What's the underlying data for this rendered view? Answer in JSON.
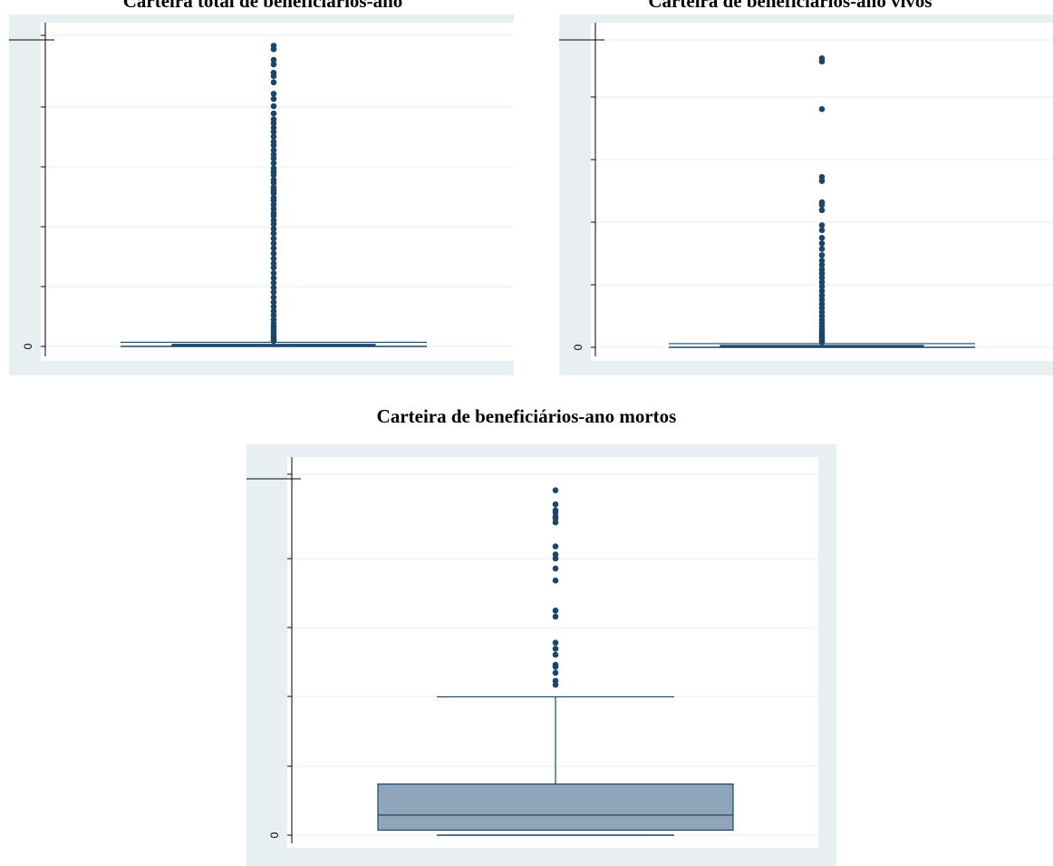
{
  "chart_data": [
    {
      "type": "box",
      "title": "Carteira total de beneficiários-ano",
      "yticks": [
        "0"
      ],
      "grid": true,
      "box": {
        "median": 0.3,
        "q1": 0.1,
        "q3": 0.6,
        "whisker_low": 0,
        "whisker_high": 1.2
      },
      "outliers": [
        87,
        86,
        82.9,
        81.6,
        79.2,
        78.2,
        76.4,
        73.1,
        71.6,
        69.5,
        67.4,
        65.7,
        64.6,
        63.3,
        62.1,
        60.7,
        59.2,
        58.2,
        56.8,
        55.5,
        54.4,
        53.0,
        51.5,
        50.5,
        49.6,
        48.2,
        47.3,
        46.0,
        45.1,
        44.3,
        43.0,
        42.2,
        41.0,
        39.8,
        38.6,
        37.8,
        36.5,
        35.4,
        34.0,
        32.7,
        31.2,
        29.8,
        28.4,
        26.9,
        25.4,
        24.0,
        22.8,
        21.2,
        19.8,
        18.4,
        17.0,
        15.7,
        14.2,
        12.8,
        11.5,
        10.2,
        9.0,
        7.8,
        6.7,
        5.7,
        4.8,
        4.0,
        3.3,
        2.7,
        2.1,
        1.6
      ]
    },
    {
      "type": "box",
      "title": "Carteira de beneficiários-ano vivos",
      "yticks": [
        "0"
      ],
      "grid": true,
      "box": {
        "median": 0.3,
        "q1": 0.1,
        "q3": 0.6,
        "whisker_low": 0,
        "whisker_high": 1.2
      },
      "outliers": [
        94,
        93,
        77.5,
        55.4,
        54.1,
        47.2,
        46.3,
        44.6,
        39.7,
        38.1,
        35.6,
        33.8,
        32.0,
        30.0,
        28.2,
        26.8,
        25.3,
        24.0,
        22.6,
        21.2,
        19.8,
        18.3,
        16.9,
        15.5,
        14.1,
        12.8,
        11.4,
        10.1,
        8.9,
        7.8,
        6.8,
        5.8,
        4.9,
        4.1,
        3.4,
        2.8,
        2.2,
        1.7
      ]
    },
    {
      "type": "box",
      "title": "Carteira de beneficiários-ano mortos",
      "yticks": [
        "0"
      ],
      "grid": true,
      "box": {
        "median": 1.0,
        "q1": 0.25,
        "q3": 2.55,
        "whisker_low": 0,
        "whisker_high": 6.9
      },
      "outliers": [
        17.2,
        16.5,
        16.2,
        16.1,
        15.9,
        15.8,
        15.6,
        14.4,
        14.0,
        13.8,
        13.3,
        12.7,
        11.2,
        10.9,
        9.6,
        9.3,
        9.0,
        8.5,
        8.4,
        8.1,
        7.7,
        7.5
      ]
    }
  ]
}
